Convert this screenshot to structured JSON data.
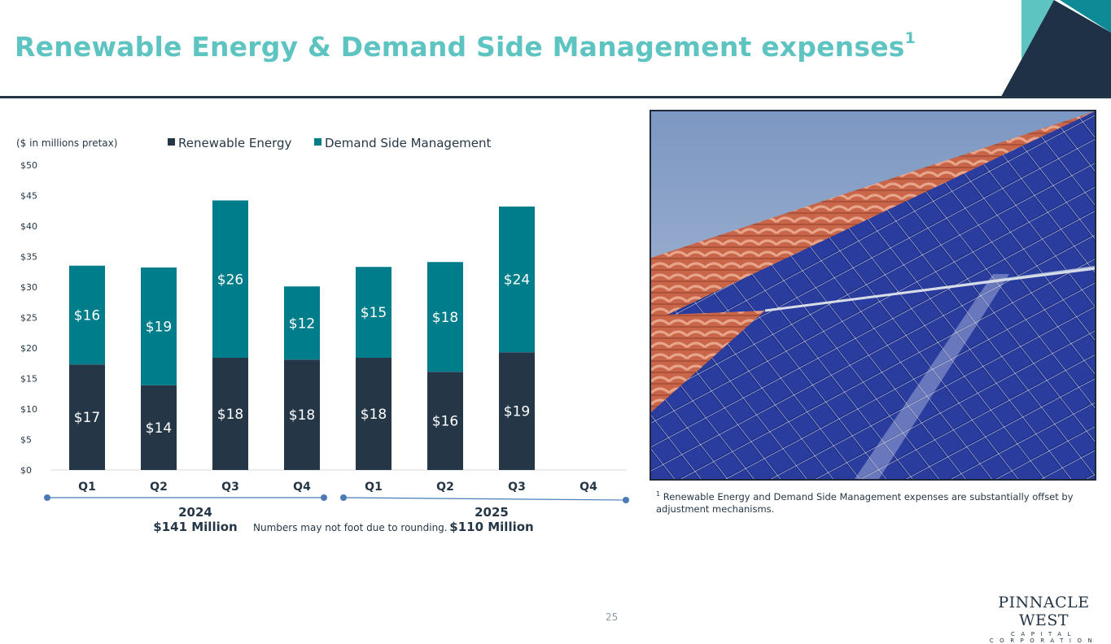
{
  "header": {
    "title": "Renewable Energy & Demand Side Management expenses",
    "title_sup": "1"
  },
  "colors": {
    "title": "#5ec4c2",
    "renewable": "#253746",
    "dsm": "#007d8a",
    "corner_dark": "#1e3146",
    "corner_teal": "#0e8a96",
    "corner_light": "#5ec4c2",
    "timeline": "#4a7bb7"
  },
  "chart_data": {
    "type": "bar",
    "stacked": true,
    "unit_label": "($ in millions pretax)",
    "ylim": [
      0,
      50
    ],
    "yticks": [
      0,
      5,
      10,
      15,
      20,
      25,
      30,
      35,
      40,
      45,
      50
    ],
    "ytick_labels": [
      "$0",
      "$5",
      "$10",
      "$15",
      "$20",
      "$25",
      "$30",
      "$35",
      "$40",
      "$45",
      "$50"
    ],
    "categories": [
      "Q1",
      "Q2",
      "Q3",
      "Q4",
      "Q1",
      "Q2",
      "Q3",
      "Q4"
    ],
    "legend_position": "top",
    "series": [
      {
        "name": "Renewable Energy",
        "color": "#253746",
        "values": [
          17.3,
          13.9,
          18.4,
          18.1,
          18.4,
          16.1,
          19.3,
          null
        ],
        "labels": [
          "$17",
          "$14",
          "$18",
          "$18",
          "$18",
          "$16",
          "$19",
          ""
        ]
      },
      {
        "name": "Demand Side Management",
        "color": "#007d8a",
        "values": [
          16.2,
          19.3,
          25.8,
          12.0,
          14.9,
          18.0,
          23.9,
          null
        ],
        "labels": [
          "$16",
          "$19",
          "$26",
          "$12",
          "$15",
          "$18",
          "$24",
          ""
        ]
      }
    ],
    "groups": [
      {
        "year": "2024",
        "total": "$141 Million"
      },
      {
        "year": "2025",
        "total": "$110 Million"
      }
    ],
    "note": "Numbers may not foot due to rounding."
  },
  "footnote": {
    "marker": "1",
    "text": "Renewable Energy and Demand Side Management expenses are substantially offset by adjustment mechanisms."
  },
  "page_number": "25",
  "logo": {
    "name": "PINNACLE WEST",
    "subtitle": "CAPITAL CORPORATION"
  }
}
